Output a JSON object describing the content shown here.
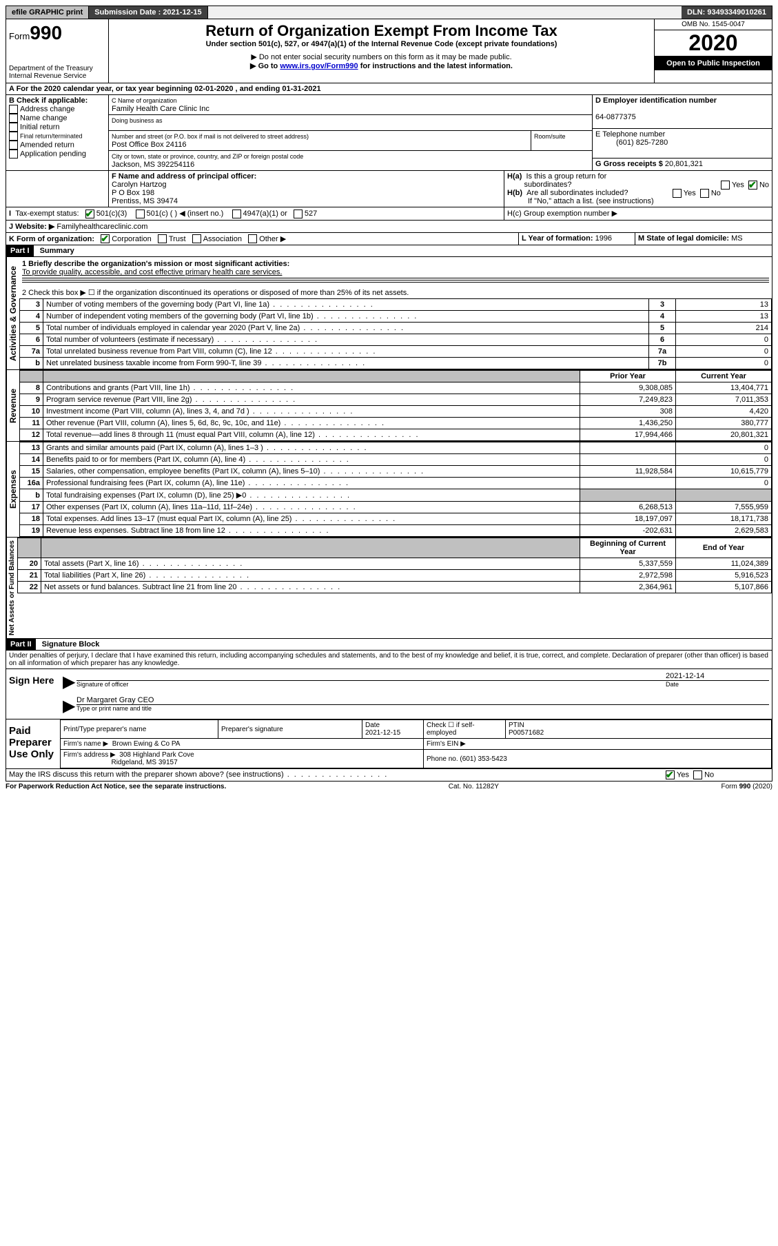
{
  "topbar": {
    "efile": "efile GRAPHIC print",
    "submission_label": "Submission Date : 2021-12-15",
    "dln": "DLN: 93493349010261"
  },
  "header": {
    "form": "Form",
    "form_num": "990",
    "dept1": "Department of the Treasury",
    "dept2": "Internal Revenue Service",
    "title": "Return of Organization Exempt From Income Tax",
    "subtitle": "Under section 501(c), 527, or 4947(a)(1) of the Internal Revenue Code (except private foundations)",
    "note1": "▶ Do not enter social security numbers on this form as it may be made public.",
    "note2_pre": "▶ Go to ",
    "note2_link": "www.irs.gov/Form990",
    "note2_post": " for instructions and the latest information.",
    "omb": "OMB No. 1545-0047",
    "year": "2020",
    "open": "Open to Public Inspection"
  },
  "periodA": "A For the 2020 calendar year, or tax year beginning 02-01-2020    , and ending 01-31-2021",
  "boxB": {
    "label": "B Check if applicable:",
    "opts": [
      "Address change",
      "Name change",
      "Initial return",
      "Final return/terminated",
      "Amended return",
      "Application pending"
    ]
  },
  "boxC": {
    "name_label": "C Name of organization",
    "name": "Family Health Care Clinic Inc",
    "dba_label": "Doing business as",
    "dba": "",
    "street_label": "Number and street (or P.O. box if mail is not delivered to street address)",
    "street": "Post Office Box 24116",
    "room_label": "Room/suite",
    "city_label": "City or town, state or province, country, and ZIP or foreign postal code",
    "city": "Jackson, MS  392254116"
  },
  "boxD": {
    "label": "D Employer identification number",
    "value": "64-0877375"
  },
  "boxE": {
    "label": "E Telephone number",
    "value": "(601) 825-7280"
  },
  "boxG": {
    "label": "G Gross receipts $",
    "value": "20,801,321"
  },
  "boxF": {
    "label": "F Name and address of principal officer:",
    "name": "Carolyn Hartzog",
    "addr1": "P O Box 198",
    "addr2": "Prentiss, MS  39474"
  },
  "boxH": {
    "a": "H(a)  Is this a group return for subordinates?",
    "b": "H(b)  Are all subordinates included?",
    "b_note": "If \"No,\" attach a list. (see instructions)",
    "c": "H(c)  Group exemption number ▶"
  },
  "taxExempt": {
    "label": "Tax-exempt status:",
    "o1": "501(c)(3)",
    "o2": "501(c) (  ) ◀ (insert no.)",
    "o3": "4947(a)(1) or",
    "o4": "527"
  },
  "boxJ": {
    "label": "J   Website: ▶",
    "value": "Familyhealthcareclinic.com"
  },
  "boxK": {
    "label": "K Form of organization:",
    "corp": "Corporation",
    "trust": "Trust",
    "assoc": "Association",
    "other": "Other ▶"
  },
  "boxL": {
    "label": "L Year of formation:",
    "value": "1996"
  },
  "boxM": {
    "label": "M State of legal domicile:",
    "value": "MS"
  },
  "part1": {
    "header": "Part I",
    "title": "Summary",
    "vert_gov": "Activities & Governance",
    "vert_rev": "Revenue",
    "vert_exp": "Expenses",
    "vert_net": "Net Assets or Fund Balances",
    "l1_label": "1   Briefly describe the organization's mission or most significant activities:",
    "l1_value": "To provide quality, accessible, and cost effective primary health care services.",
    "l2": "2   Check this box ▶ ☐  if the organization discontinued its operations or disposed of more than 25% of its net assets.",
    "lines_gov": [
      {
        "n": "3",
        "d": "Number of voting members of the governing body (Part VI, line 1a)",
        "box": "3",
        "v": "13"
      },
      {
        "n": "4",
        "d": "Number of independent voting members of the governing body (Part VI, line 1b)",
        "box": "4",
        "v": "13"
      },
      {
        "n": "5",
        "d": "Total number of individuals employed in calendar year 2020 (Part V, line 2a)",
        "box": "5",
        "v": "214"
      },
      {
        "n": "6",
        "d": "Total number of volunteers (estimate if necessary)",
        "box": "6",
        "v": "0"
      },
      {
        "n": "7a",
        "d": "Total unrelated business revenue from Part VIII, column (C), line 12",
        "box": "7a",
        "v": "0"
      },
      {
        "n": "b",
        "d": "Net unrelated business taxable income from Form 990-T, line 39",
        "box": "7b",
        "v": "0"
      }
    ],
    "col_prior": "Prior Year",
    "col_current": "Current Year",
    "lines_rev": [
      {
        "n": "8",
        "d": "Contributions and grants (Part VIII, line 1h)",
        "p": "9,308,085",
        "c": "13,404,771"
      },
      {
        "n": "9",
        "d": "Program service revenue (Part VIII, line 2g)",
        "p": "7,249,823",
        "c": "7,011,353"
      },
      {
        "n": "10",
        "d": "Investment income (Part VIII, column (A), lines 3, 4, and 7d )",
        "p": "308",
        "c": "4,420"
      },
      {
        "n": "11",
        "d": "Other revenue (Part VIII, column (A), lines 5, 6d, 8c, 9c, 10c, and 11e)",
        "p": "1,436,250",
        "c": "380,777"
      },
      {
        "n": "12",
        "d": "Total revenue—add lines 8 through 11 (must equal Part VIII, column (A), line 12)",
        "p": "17,994,466",
        "c": "20,801,321"
      }
    ],
    "lines_exp": [
      {
        "n": "13",
        "d": "Grants and similar amounts paid (Part IX, column (A), lines 1–3 )",
        "p": "",
        "c": "0"
      },
      {
        "n": "14",
        "d": "Benefits paid to or for members (Part IX, column (A), line 4)",
        "p": "",
        "c": "0"
      },
      {
        "n": "15",
        "d": "Salaries, other compensation, employee benefits (Part IX, column (A), lines 5–10)",
        "p": "11,928,584",
        "c": "10,615,779"
      },
      {
        "n": "16a",
        "d": "Professional fundraising fees (Part IX, column (A), line 11e)",
        "p": "",
        "c": "0"
      },
      {
        "n": "b",
        "d": "Total fundraising expenses (Part IX, column (D), line 25) ▶0",
        "p": "GREY",
        "c": "GREY"
      },
      {
        "n": "17",
        "d": "Other expenses (Part IX, column (A), lines 11a–11d, 11f–24e)",
        "p": "6,268,513",
        "c": "7,555,959"
      },
      {
        "n": "18",
        "d": "Total expenses. Add lines 13–17 (must equal Part IX, column (A), line 25)",
        "p": "18,197,097",
        "c": "18,171,738"
      },
      {
        "n": "19",
        "d": "Revenue less expenses. Subtract line 18 from line 12",
        "p": "-202,631",
        "c": "2,629,583"
      }
    ],
    "col_begin": "Beginning of Current Year",
    "col_end": "End of Year",
    "lines_net": [
      {
        "n": "20",
        "d": "Total assets (Part X, line 16)",
        "p": "5,337,559",
        "c": "11,024,389"
      },
      {
        "n": "21",
        "d": "Total liabilities (Part X, line 26)",
        "p": "2,972,598",
        "c": "5,916,523"
      },
      {
        "n": "22",
        "d": "Net assets or fund balances. Subtract line 21 from line 20",
        "p": "2,364,961",
        "c": "5,107,866"
      }
    ]
  },
  "part2": {
    "header": "Part II",
    "title": "Signature Block",
    "jurat": "Under penalties of perjury, I declare that I have examined this return, including accompanying schedules and statements, and to the best of my knowledge and belief, it is true, correct, and complete. Declaration of preparer (other than officer) is based on all information of which preparer has any knowledge.",
    "sign_here": "Sign Here",
    "sig_officer": "Signature of officer",
    "sig_date": "2021-12-14",
    "date_label": "Date",
    "officer_name": "Dr Margaret Gray CEO",
    "officer_title_label": "Type or print name and title",
    "paid": "Paid Preparer Use Only",
    "prep_name_label": "Print/Type preparer's name",
    "prep_sig_label": "Preparer's signature",
    "prep_date": "2021-12-15",
    "prep_check": "Check ☐ if self-employed",
    "ptin_label": "PTIN",
    "ptin": "P00571682",
    "firm_name_label": "Firm's name    ▶",
    "firm_name": "Brown Ewing & Co PA",
    "firm_ein_label": "Firm's EIN ▶",
    "firm_addr_label": "Firm's address ▶",
    "firm_addr1": "308 Highland Park Cove",
    "firm_addr2": "Ridgeland, MS  39157",
    "firm_phone_label": "Phone no.",
    "firm_phone": "(601) 353-5423",
    "discuss": "May the IRS discuss this return with the preparer shown above? (see instructions)"
  },
  "footer": {
    "left": "For Paperwork Reduction Act Notice, see the separate instructions.",
    "center": "Cat. No. 11282Y",
    "right": "Form 990 (2020)"
  }
}
